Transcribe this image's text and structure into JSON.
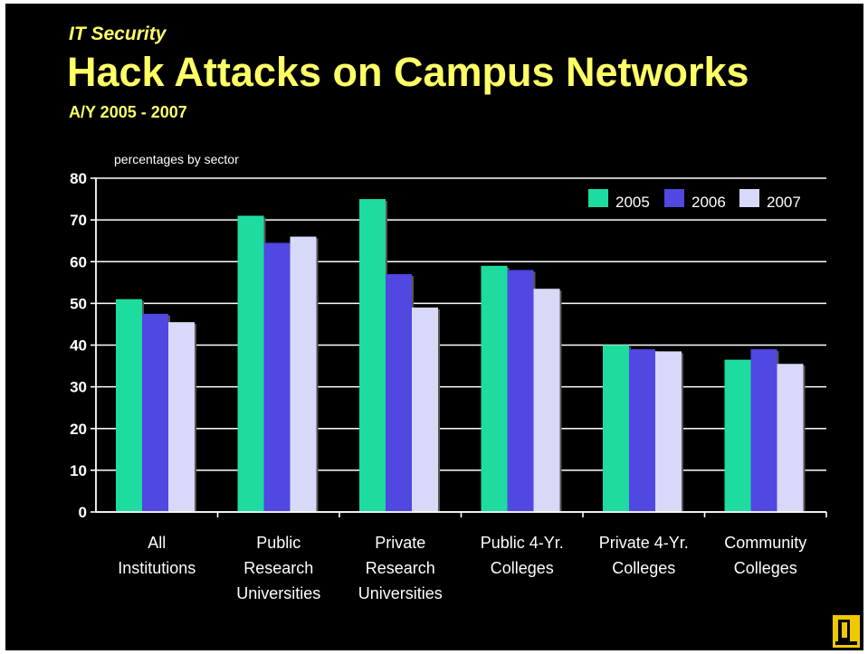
{
  "slide": {
    "kicker": "IT Security",
    "title": "Hack Attacks on Campus Networks",
    "subtitle": "A/Y 2005 - 2007"
  },
  "chart_data": {
    "type": "bar",
    "title": "",
    "ylabel": "percentages by sector",
    "xlabel": "",
    "ylim": [
      0,
      80
    ],
    "yticks": [
      0,
      10,
      20,
      30,
      40,
      50,
      60,
      70,
      80
    ],
    "grid": true,
    "legend_position": "top-right",
    "categories": [
      [
        "All",
        "Institutions"
      ],
      [
        "Public",
        "Research",
        "Universities"
      ],
      [
        "Private",
        "Research",
        "Universities"
      ],
      [
        "Public 4-Yr.",
        "Colleges"
      ],
      [
        "Private 4-Yr.",
        "Colleges"
      ],
      [
        "Community",
        "Colleges"
      ]
    ],
    "series": [
      {
        "name": "2005",
        "color": "#1edba0",
        "values": [
          51,
          71,
          75,
          59,
          40,
          36.5
        ]
      },
      {
        "name": "2006",
        "color": "#5048e0",
        "values": [
          47.5,
          64.5,
          57,
          58,
          39,
          39
        ]
      },
      {
        "name": "2007",
        "color": "#d8d8f8",
        "values": [
          45.5,
          66,
          49,
          53.5,
          38.5,
          35.5
        ]
      }
    ]
  },
  "colors": {
    "background": "#000000",
    "title": "#ffff66",
    "axis_text": "#ffffff"
  }
}
